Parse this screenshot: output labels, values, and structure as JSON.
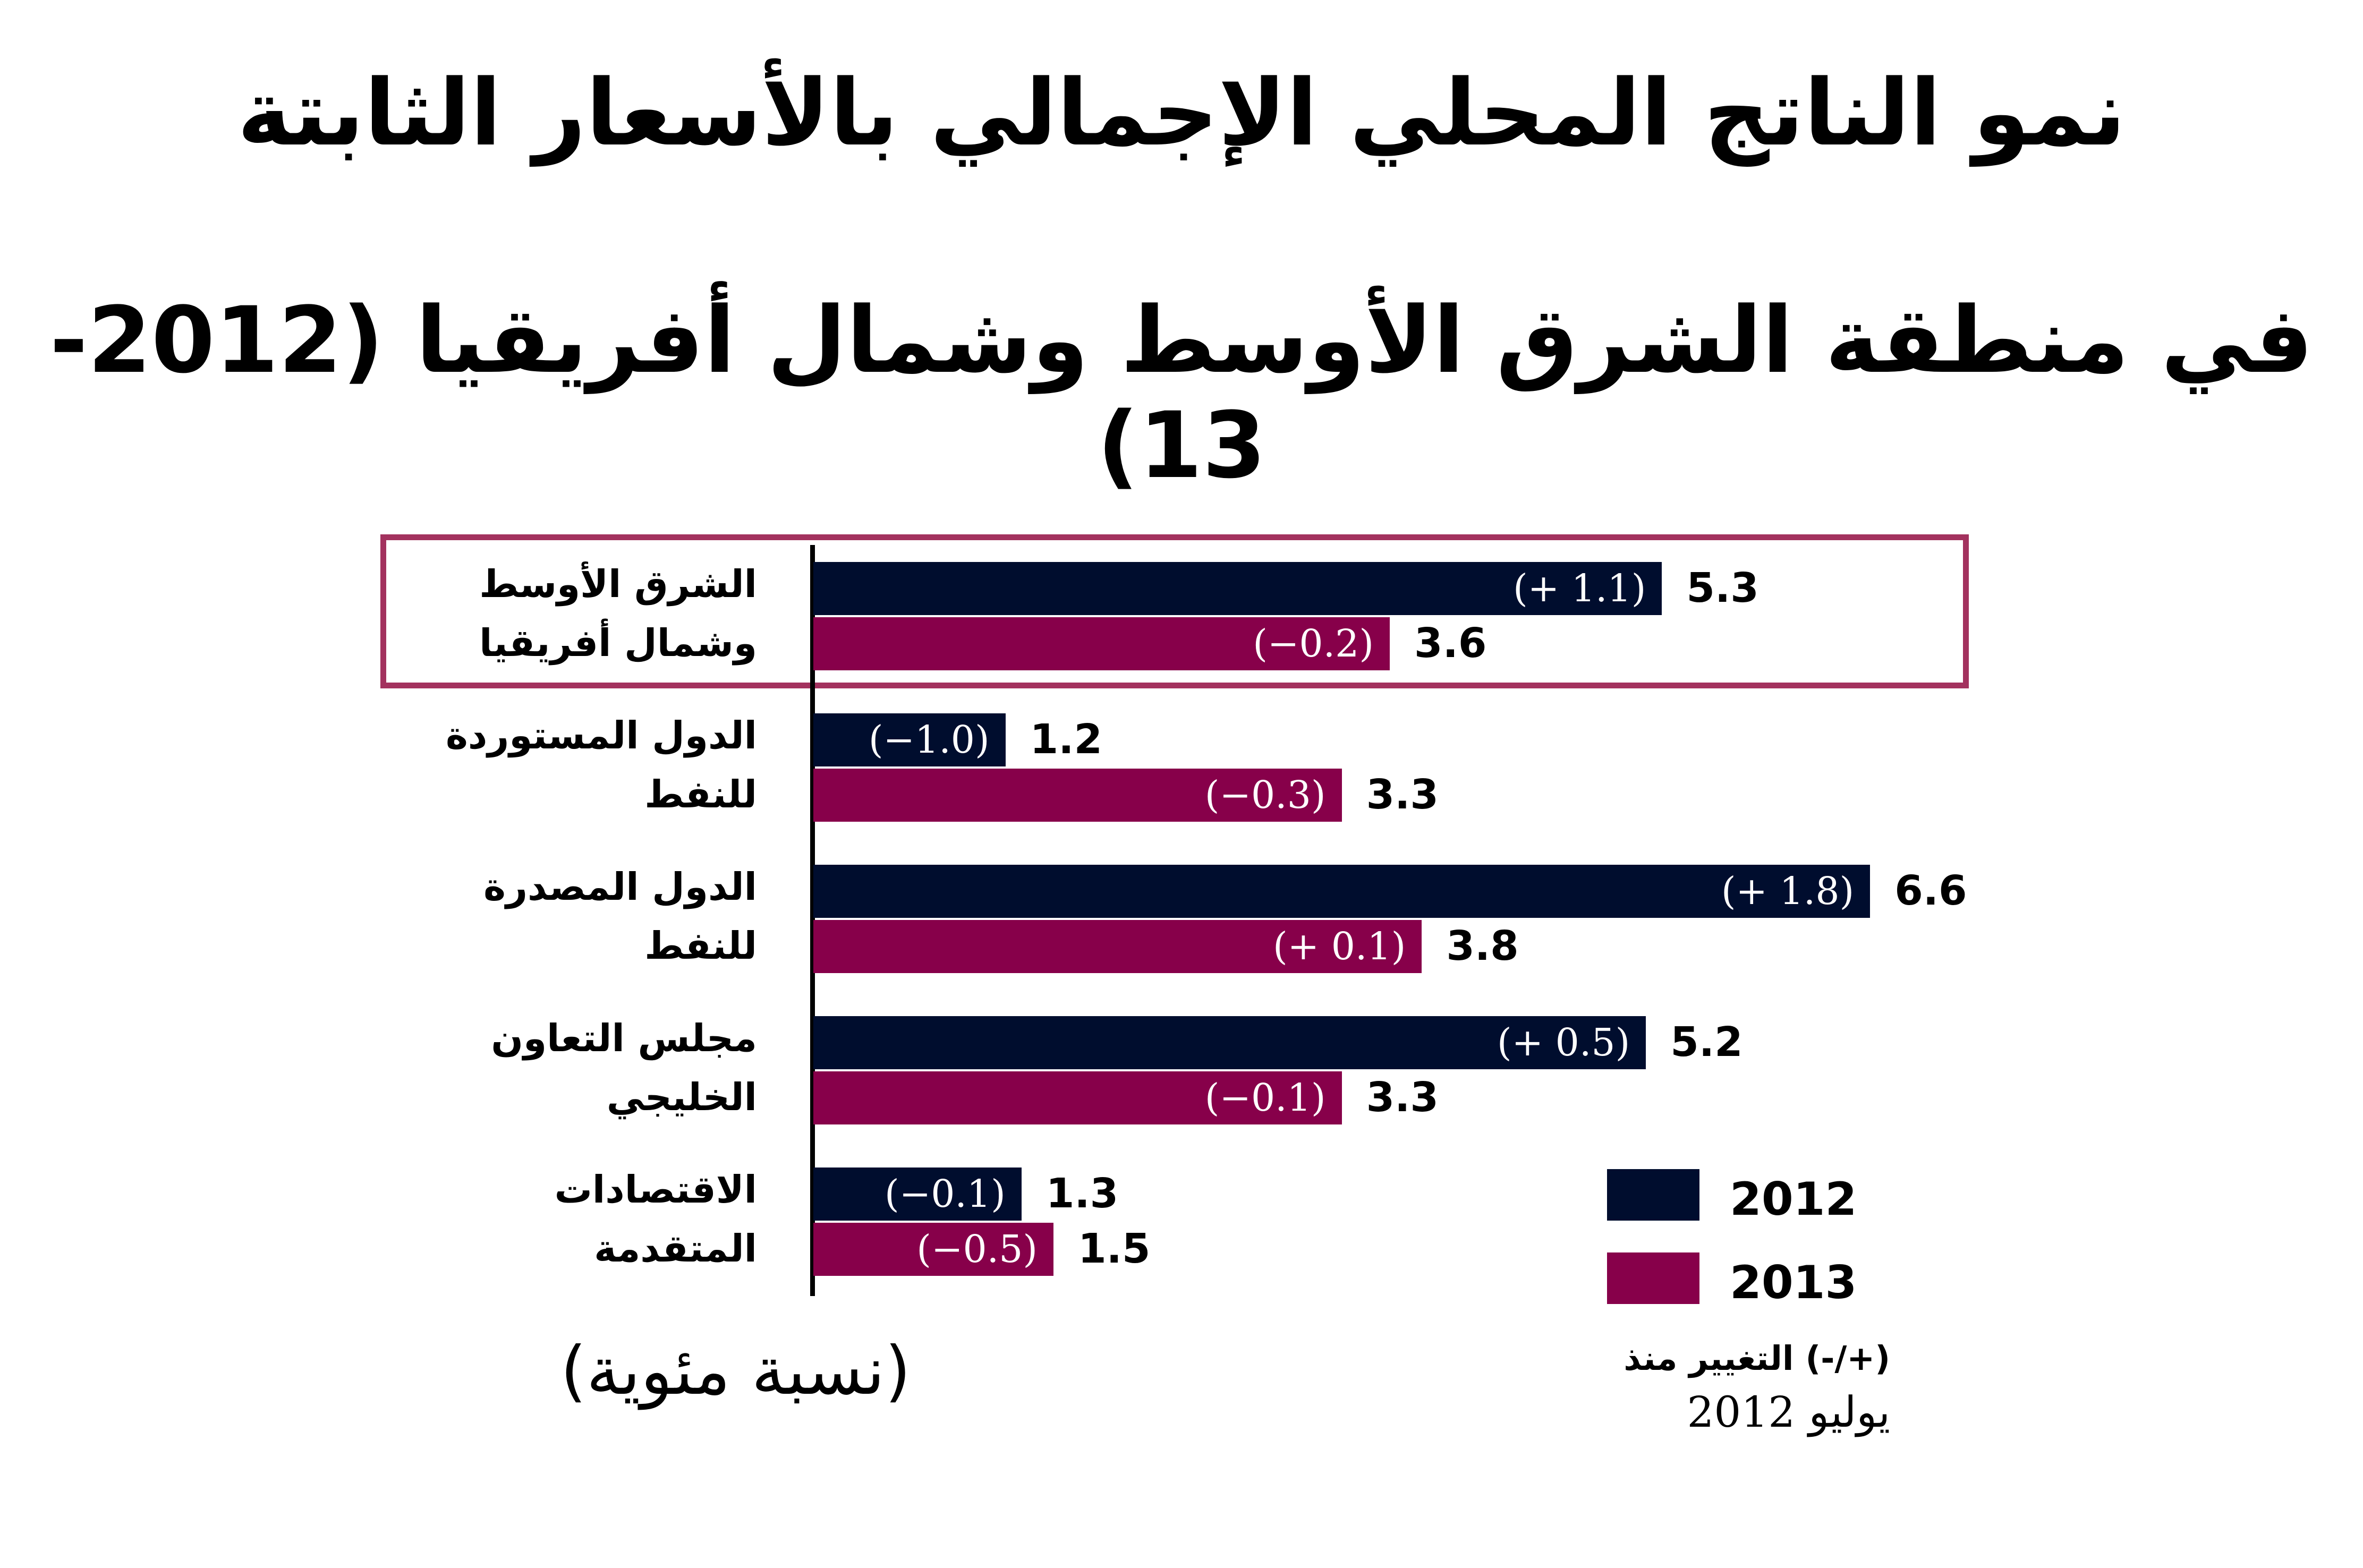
{
  "chart_data": {
    "type": "bar",
    "orientation": "horizontal",
    "title": "نمو الناتج المحلي الإجمالي بالأسعار الثابتة",
    "subtitle": "في منطقة الشرق الأوسط وشمال أفريقيا (2012-13)",
    "unit_label": "(نسبة مئوية)",
    "categories": [
      {
        "line1": "الشرق الأوسط",
        "line2": "وشمال أفريقيا",
        "highlighted": true
      },
      {
        "line1": "الدول المستوردة",
        "line2": "للنفط",
        "highlighted": false
      },
      {
        "line1": "الدول المصدرة",
        "line2": "للنفط",
        "highlighted": false
      },
      {
        "line1": "مجلس التعاون",
        "line2": "الخليجي",
        "highlighted": false
      },
      {
        "line1": "الاقتصادات",
        "line2": "المتقدمة",
        "highlighted": false
      }
    ],
    "series": [
      {
        "name": "2012",
        "color": "#000d2e",
        "values": [
          5.3,
          1.2,
          6.6,
          5.2,
          1.3
        ],
        "value_labels": [
          "5.3",
          "1.2",
          "6.6",
          "5.2",
          "1.3"
        ],
        "change_labels": [
          "(+ 1.1)",
          "(−1.0)",
          "(+ 1.8)",
          "(+ 0.5)",
          "(−0.1)"
        ]
      },
      {
        "name": "2013",
        "color": "#87004a",
        "values": [
          3.6,
          3.3,
          3.8,
          3.3,
          1.5
        ],
        "value_labels": [
          "3.6",
          "3.3",
          "3.8",
          "3.3",
          "1.5"
        ],
        "change_labels": [
          "(−0.2)",
          "(−0.3)",
          "(+ 0.1)",
          "(−0.1)",
          "(−0.5)"
        ]
      }
    ],
    "legend_placement": "bottom-right",
    "note_line1": "(+/-) التغيير منذ",
    "note_line2": "يوليو  2012",
    "highlight_color": "#a3325e",
    "grid": false
  }
}
